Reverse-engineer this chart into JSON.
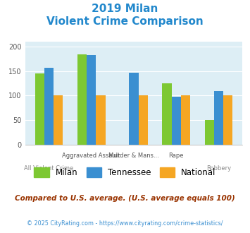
{
  "title_line1": "2019 Milan",
  "title_line2": "Violent Crime Comparison",
  "categories": [
    "All Violent Crime",
    "Aggravated Assault",
    "Murder & Mans...",
    "Rape",
    "Robbery"
  ],
  "milan": [
    146,
    185,
    0,
    125,
    50
  ],
  "tennessee": [
    157,
    183,
    147,
    98,
    110
  ],
  "national": [
    100,
    100,
    100,
    100,
    100
  ],
  "milan_color": "#7dc832",
  "tennessee_color": "#3a8fd1",
  "national_color": "#f5a623",
  "ylim": [
    0,
    210
  ],
  "yticks": [
    0,
    50,
    100,
    150,
    200
  ],
  "background_color": "#ddeef5",
  "title_color": "#2288cc",
  "footer_color": "#993300",
  "copyright_color": "#3a8fd1",
  "footer_note": "Compared to U.S. average. (U.S. average equals 100)",
  "copyright": "© 2025 CityRating.com - https://www.cityrating.com/crime-statistics/",
  "legend_labels": [
    "Milan",
    "Tennessee",
    "National"
  ],
  "bar_width": 0.22,
  "top_labels": [
    "",
    "Aggravated Assault",
    "Murder & Mans...",
    "Rape",
    ""
  ],
  "bottom_labels": [
    "All Violent Crime",
    "",
    "",
    "",
    "Robbery"
  ]
}
